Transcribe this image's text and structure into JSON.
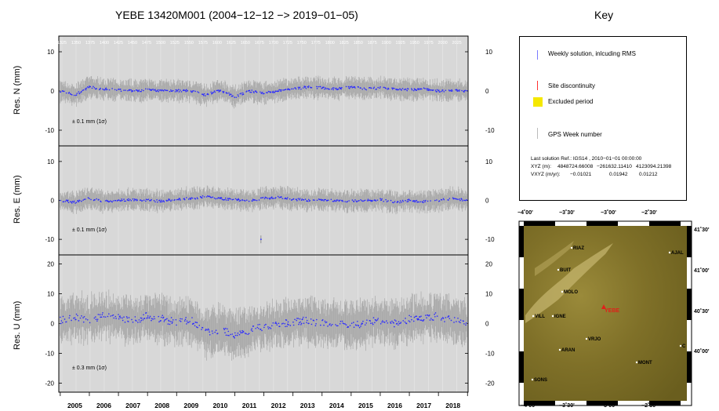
{
  "title": "YEBE 13420M001 (2004−12−12 −> 2019−01−05)",
  "key_title": "Key",
  "chart_data": [
    {
      "type": "scatter",
      "ylabel": "Res. N (mm)",
      "ylim": [
        -14,
        14
      ],
      "yticks": [
        -10,
        0,
        10
      ],
      "sigma_note": "± 0.1 mm (1σ)",
      "xlim": [
        2004.95,
        2019.02
      ],
      "x": [
        2005.0,
        2005.5,
        2006.0,
        2006.5,
        2007.0,
        2007.5,
        2008.0,
        2008.5,
        2009.0,
        2009.5,
        2010.0,
        2010.5,
        2011.0,
        2011.5,
        2012.0,
        2012.5,
        2013.0,
        2013.5,
        2014.0,
        2014.5,
        2015.0,
        2015.5,
        2016.0,
        2016.5,
        2017.0,
        2017.5,
        2018.0,
        2018.5,
        2019.0
      ],
      "y": [
        0.0,
        -1.0,
        1.0,
        0.5,
        0.2,
        0.0,
        0.3,
        0.0,
        0.1,
        0.0,
        -1.0,
        0.2,
        -1.5,
        0.0,
        -0.5,
        0.0,
        0.5,
        1.0,
        0.8,
        0.5,
        1.0,
        0.5,
        0.8,
        0.5,
        0.3,
        0.5,
        0.0,
        0.2,
        0.0
      ]
    },
    {
      "type": "scatter",
      "ylabel": "Res. E (mm)",
      "ylim": [
        -14,
        14
      ],
      "yticks": [
        -10,
        0,
        10
      ],
      "sigma_note": "± 0.1 mm (1σ)",
      "xlim": [
        2004.95,
        2019.02
      ],
      "x": [
        2005.0,
        2005.5,
        2006.0,
        2006.5,
        2007.0,
        2007.5,
        2008.0,
        2008.5,
        2009.0,
        2009.5,
        2010.0,
        2010.5,
        2011.0,
        2011.5,
        2012.0,
        2012.5,
        2013.0,
        2013.5,
        2014.0,
        2014.5,
        2015.0,
        2015.5,
        2016.0,
        2016.5,
        2017.0,
        2017.5,
        2018.0,
        2018.5,
        2019.0
      ],
      "y": [
        0.0,
        -0.5,
        0.5,
        -0.3,
        0.0,
        0.2,
        0.0,
        -0.2,
        0.3,
        0.5,
        1.0,
        0.5,
        0.2,
        0.0,
        0.5,
        0.8,
        0.3,
        0.0,
        0.2,
        0.0,
        -0.2,
        0.0,
        0.2,
        -0.5,
        0.0,
        -0.3,
        0.0,
        0.5,
        0.0
      ],
      "outliers": [
        {
          "x": 2011.9,
          "y": -10.0
        }
      ]
    },
    {
      "type": "scatter",
      "ylabel": "Res. U (mm)",
      "ylim": [
        -23,
        23
      ],
      "yticks": [
        -20,
        -10,
        0,
        10,
        20
      ],
      "sigma_note": "± 0.3 mm (1σ)",
      "xlim": [
        2004.95,
        2019.02
      ],
      "x": [
        2005.0,
        2005.5,
        2006.0,
        2006.5,
        2007.0,
        2007.5,
        2008.0,
        2008.5,
        2009.0,
        2009.5,
        2010.0,
        2010.5,
        2011.0,
        2011.5,
        2012.0,
        2012.5,
        2013.0,
        2013.5,
        2014.0,
        2014.5,
        2015.0,
        2015.5,
        2016.0,
        2016.5,
        2017.0,
        2017.5,
        2018.0,
        2018.5,
        2019.0
      ],
      "y": [
        1.0,
        2.0,
        1.5,
        2.5,
        2.0,
        1.0,
        2.5,
        1.5,
        0.5,
        1.0,
        -3.0,
        -2.0,
        -4.0,
        -2.5,
        -1.0,
        0.0,
        0.5,
        1.0,
        0.0,
        0.5,
        -1.0,
        0.5,
        1.0,
        0.0,
        1.5,
        2.0,
        2.5,
        1.0,
        0.0
      ]
    }
  ],
  "x_tick_labels": [
    "2005",
    "2006",
    "2007",
    "2008",
    "2009",
    "2010",
    "2011",
    "2012",
    "2013",
    "2014",
    "2015",
    "2016",
    "2017",
    "2018"
  ],
  "x_tick_years": [
    2005.5,
    2006.5,
    2007.5,
    2008.5,
    2009.5,
    2010.5,
    2011.5,
    2012.5,
    2013.5,
    2014.5,
    2015.5,
    2016.5,
    2017.5,
    2018.5
  ],
  "gps_week_labels": [
    "1325",
    "1350",
    "1375",
    "1400",
    "1425",
    "1450",
    "1475",
    "1500",
    "1525",
    "1550",
    "1575",
    "1600",
    "1625",
    "1650",
    "1675",
    "1700",
    "1725",
    "1750",
    "1775",
    "1800",
    "1825",
    "1850",
    "1875",
    "1900",
    "1925",
    "1950",
    "1975",
    "2000",
    "2025"
  ],
  "key": {
    "weekly": "Weekly solution, inlcuding RMS",
    "discontinuity": "Site discontinuity",
    "excluded": "Excluded period",
    "gps_week": "GPS Week number",
    "ref_line1": "Last solution Ref.: IGS14 , 2010−01−01 00:00:00",
    "xyz_label": "XYZ (m):",
    "xyz_vals": [
      "4848724.66008",
      "−261632.11410",
      "4123094.21398"
    ],
    "vxyz_label": "VXYZ (m/yr):",
    "vxyz_vals": [
      "−0.01021",
      "0.01942",
      "0.01212"
    ]
  },
  "map": {
    "lon_labels": [
      "−4˚00'",
      "−3˚30'",
      "−3˚00'",
      "−2˚30'"
    ],
    "lat_labels": [
      "41˚30'",
      "41˚00'",
      "40˚30'",
      "40˚00'"
    ],
    "sites": [
      {
        "name": "RIAZ"
      },
      {
        "name": "AJAL"
      },
      {
        "name": "BUIT"
      },
      {
        "name": "MOLO"
      },
      {
        "name": "YEBE"
      },
      {
        "name": "VILL"
      },
      {
        "name": "IGNE"
      },
      {
        "name": "VRJO"
      },
      {
        "name": "ARAN"
      },
      {
        "name": "MONT"
      },
      {
        "name": "C"
      },
      {
        "name": "SONS"
      }
    ]
  }
}
